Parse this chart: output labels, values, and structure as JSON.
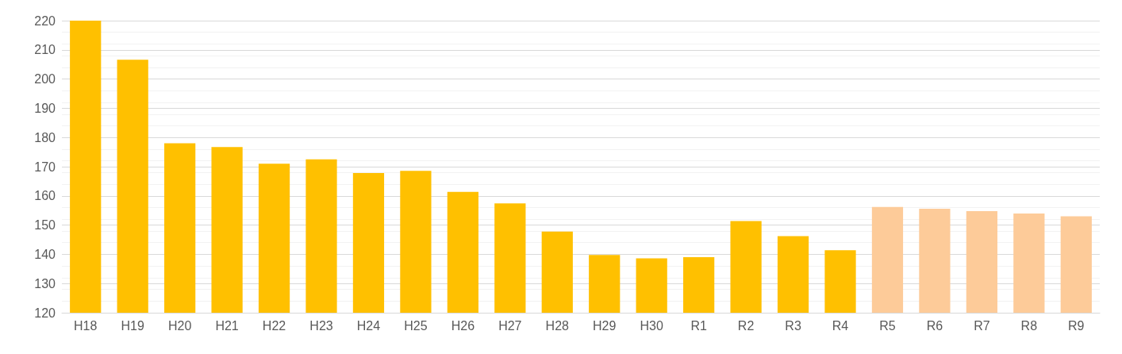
{
  "chart_data": {
    "type": "bar",
    "categories": [
      "H18",
      "H19",
      "H20",
      "H21",
      "H22",
      "H23",
      "H24",
      "H25",
      "H26",
      "H27",
      "H28",
      "H29",
      "H30",
      "R1",
      "R2",
      "R3",
      "R4",
      "R5",
      "R6",
      "R7",
      "R8",
      "R9"
    ],
    "values": [
      220,
      206.6,
      178,
      176.7,
      171,
      172.5,
      167.8,
      168.6,
      161.4,
      157.4,
      147.8,
      139.8,
      138.6,
      139,
      151.4,
      146.2,
      141.4,
      156.2,
      155.6,
      154.8,
      154,
      153
    ],
    "colors": [
      "#ffc000",
      "#ffc000",
      "#ffc000",
      "#ffc000",
      "#ffc000",
      "#ffc000",
      "#ffc000",
      "#ffc000",
      "#ffc000",
      "#ffc000",
      "#ffc000",
      "#ffc000",
      "#ffc000",
      "#ffc000",
      "#ffc000",
      "#ffc000",
      "#ffc000",
      "#fdcb99",
      "#fdcb99",
      "#fdcb99",
      "#fdcb99",
      "#fdcb99"
    ],
    "ylim": [
      120,
      220
    ],
    "yticks": [
      120,
      130,
      140,
      150,
      160,
      170,
      180,
      190,
      200,
      210,
      220
    ],
    "grid": "y"
  }
}
